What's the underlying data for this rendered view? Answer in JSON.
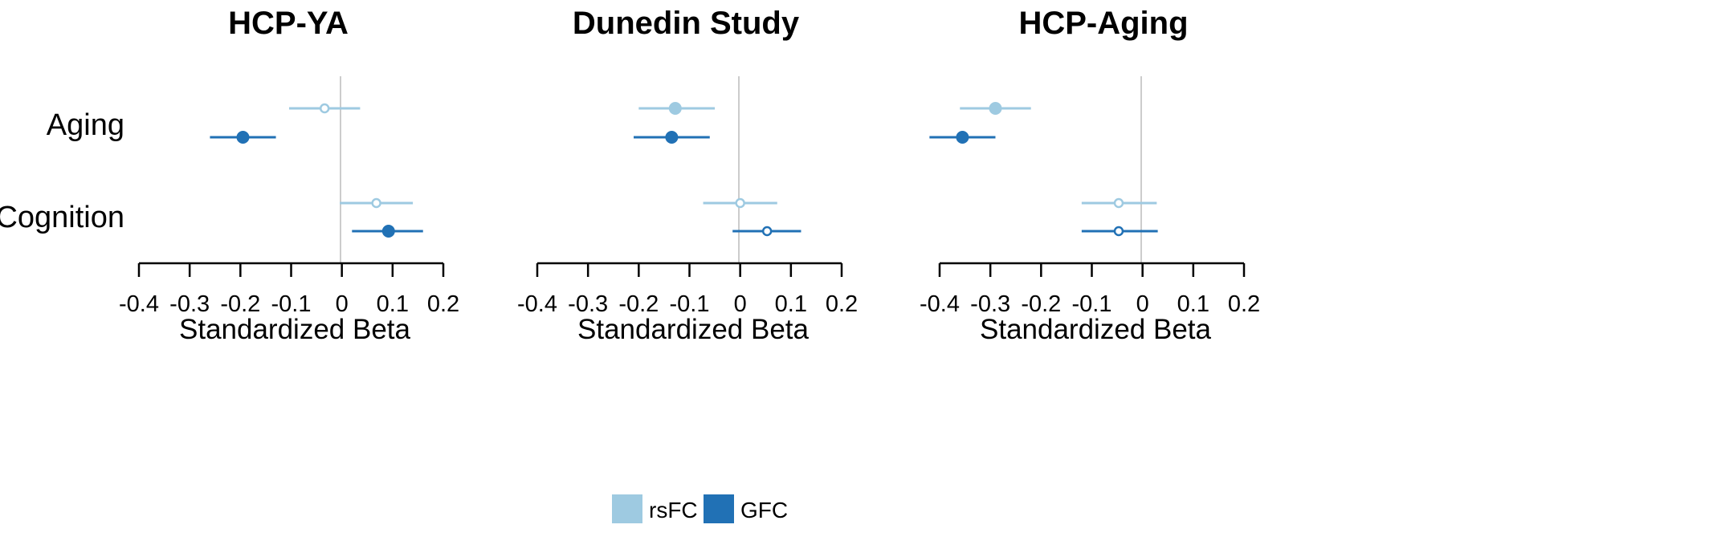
{
  "colors": {
    "rsFC": "#9ecae1",
    "GFC": "#2171b5",
    "zero_line": "#cccccc",
    "axis": "#000000"
  },
  "legend": {
    "items": [
      {
        "key": "rsFC",
        "label": "rsFC"
      },
      {
        "key": "GFC",
        "label": "GFC"
      }
    ]
  },
  "row_labels": [
    "Aging",
    "Cognition"
  ],
  "chart_data": [
    {
      "type": "forest",
      "title": "HCP-YA",
      "xlabel": "Standardized Beta",
      "xlim": [
        -0.4,
        0.2
      ],
      "xticks": [
        "-0.4",
        "-0.3",
        "-0.2",
        "-0.1",
        "0",
        "0.1",
        "0.2"
      ],
      "series": [
        {
          "name": "rsFC",
          "points": [
            {
              "category": "Aging",
              "estimate": -0.034,
              "ci": [
                -0.104,
                0.036
              ],
              "filled": false
            },
            {
              "category": "Cognition",
              "estimate": 0.068,
              "ci": [
                -0.004,
                0.14
              ],
              "filled": false
            }
          ]
        },
        {
          "name": "GFC",
          "points": [
            {
              "category": "Aging",
              "estimate": -0.195,
              "ci": [
                -0.26,
                -0.13
              ],
              "filled": true
            },
            {
              "category": "Cognition",
              "estimate": 0.092,
              "ci": [
                0.02,
                0.16
              ],
              "filled": true
            }
          ]
        }
      ]
    },
    {
      "type": "forest",
      "title": "Dunedin Study",
      "xlabel": "Standardized Beta",
      "xlim": [
        -0.4,
        0.2
      ],
      "xticks": [
        "-0.4",
        "-0.3",
        "-0.2",
        "-0.1",
        "0",
        "0.1",
        "0.2"
      ],
      "series": [
        {
          "name": "rsFC",
          "points": [
            {
              "category": "Aging",
              "estimate": -0.128,
              "ci": [
                -0.2,
                -0.05
              ],
              "filled": true
            },
            {
              "category": "Cognition",
              "estimate": 0.0,
              "ci": [
                -0.073,
                0.073
              ],
              "filled": false
            }
          ]
        },
        {
          "name": "GFC",
          "points": [
            {
              "category": "Aging",
              "estimate": -0.135,
              "ci": [
                -0.21,
                -0.06
              ],
              "filled": true
            },
            {
              "category": "Cognition",
              "estimate": 0.053,
              "ci": [
                -0.015,
                0.12
              ],
              "filled": false
            }
          ]
        }
      ]
    },
    {
      "type": "forest",
      "title": "HCP-Aging",
      "xlabel": "Standardized Beta",
      "xlim": [
        -0.4,
        0.2
      ],
      "xticks": [
        "-0.4",
        "-0.3",
        "-0.2",
        "-0.1",
        "0",
        "0.1",
        "0.2"
      ],
      "series": [
        {
          "name": "rsFC",
          "points": [
            {
              "category": "Aging",
              "estimate": -0.29,
              "ci": [
                -0.36,
                -0.22
              ],
              "filled": true
            },
            {
              "category": "Cognition",
              "estimate": -0.047,
              "ci": [
                -0.12,
                0.028
              ],
              "filled": false
            }
          ]
        },
        {
          "name": "GFC",
          "points": [
            {
              "category": "Aging",
              "estimate": -0.355,
              "ci": [
                -0.42,
                -0.29
              ],
              "filled": true
            },
            {
              "category": "Cognition",
              "estimate": -0.047,
              "ci": [
                -0.12,
                0.03
              ],
              "filled": false
            }
          ]
        }
      ]
    }
  ]
}
